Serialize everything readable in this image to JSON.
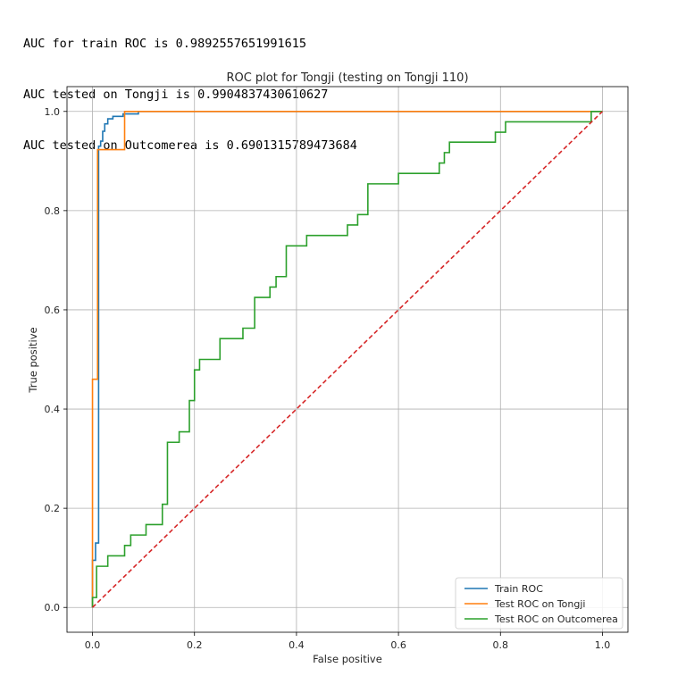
{
  "console": {
    "lines": [
      "AUC for train ROC is 0.9892557651991615",
      "AUC tested on Tongji is 0.9904837430610627",
      "AUC tested on Outcomerea is 0.6901315789473684"
    ]
  },
  "chart_data": {
    "type": "line",
    "title": "ROC plot for Tongji (testing on Tongji 110)",
    "xlabel": "False positive",
    "ylabel": "True positive",
    "xlim": [
      -0.05,
      1.05
    ],
    "ylim": [
      -0.05,
      1.05
    ],
    "xticks": [
      0.0,
      0.2,
      0.4,
      0.6,
      0.8,
      1.0
    ],
    "yticks": [
      0.0,
      0.2,
      0.4,
      0.6,
      0.8,
      1.0
    ],
    "xtick_labels": [
      "0.0",
      "0.2",
      "0.4",
      "0.6",
      "0.8",
      "1.0"
    ],
    "ytick_labels": [
      "0.0",
      "0.2",
      "0.4",
      "0.6",
      "0.8",
      "1.0"
    ],
    "grid": true,
    "legend_position": "lower right",
    "series": [
      {
        "name": "Train ROC",
        "color": "#1f77b4",
        "style": "step",
        "x": [
          0.0,
          0.0,
          0.006,
          0.006,
          0.012,
          0.012,
          0.016,
          0.016,
          0.02,
          0.02,
          0.024,
          0.024,
          0.03,
          0.03,
          0.04,
          0.04,
          0.06,
          0.06,
          0.09,
          0.09,
          1.0
        ],
        "y": [
          0.0,
          0.095,
          0.095,
          0.13,
          0.13,
          0.93,
          0.93,
          0.94,
          0.94,
          0.96,
          0.96,
          0.975,
          0.975,
          0.985,
          0.985,
          0.99,
          0.99,
          0.995,
          0.995,
          1.0,
          1.0
        ]
      },
      {
        "name": "Test ROC on Tongji",
        "color": "#ff7f0e",
        "style": "step",
        "x": [
          0.0,
          0.0,
          0.01,
          0.01,
          0.063,
          0.063,
          1.0
        ],
        "y": [
          0.0,
          0.46,
          0.46,
          0.923,
          0.923,
          1.0,
          1.0
        ]
      },
      {
        "name": "Test ROC on Outcomerea",
        "color": "#2ca02c",
        "style": "step",
        "x": [
          0.0,
          0.0,
          0.008,
          0.008,
          0.03,
          0.03,
          0.063,
          0.063,
          0.075,
          0.075,
          0.105,
          0.105,
          0.137,
          0.137,
          0.147,
          0.147,
          0.17,
          0.17,
          0.19,
          0.19,
          0.2,
          0.2,
          0.21,
          0.21,
          0.25,
          0.25,
          0.295,
          0.295,
          0.318,
          0.318,
          0.348,
          0.348,
          0.36,
          0.36,
          0.38,
          0.38,
          0.42,
          0.42,
          0.5,
          0.5,
          0.52,
          0.52,
          0.54,
          0.54,
          0.6,
          0.6,
          0.68,
          0.68,
          0.69,
          0.69,
          0.7,
          0.7,
          0.79,
          0.79,
          0.81,
          0.81,
          0.978,
          0.978,
          1.0
        ],
        "y": [
          0.0,
          0.02,
          0.02,
          0.083,
          0.083,
          0.104,
          0.104,
          0.125,
          0.125,
          0.146,
          0.146,
          0.167,
          0.167,
          0.208,
          0.208,
          0.333,
          0.333,
          0.354,
          0.354,
          0.417,
          0.417,
          0.479,
          0.479,
          0.5,
          0.5,
          0.542,
          0.542,
          0.563,
          0.563,
          0.625,
          0.625,
          0.646,
          0.646,
          0.667,
          0.667,
          0.729,
          0.729,
          0.75,
          0.75,
          0.771,
          0.771,
          0.792,
          0.792,
          0.854,
          0.854,
          0.875,
          0.875,
          0.896,
          0.896,
          0.917,
          0.917,
          0.938,
          0.938,
          0.958,
          0.958,
          0.979,
          0.979,
          1.0,
          1.0
        ]
      },
      {
        "name": "",
        "color": "#d62728",
        "style": "dashed",
        "x": [
          0.0,
          1.0
        ],
        "y": [
          0.0,
          1.0
        ]
      }
    ]
  }
}
